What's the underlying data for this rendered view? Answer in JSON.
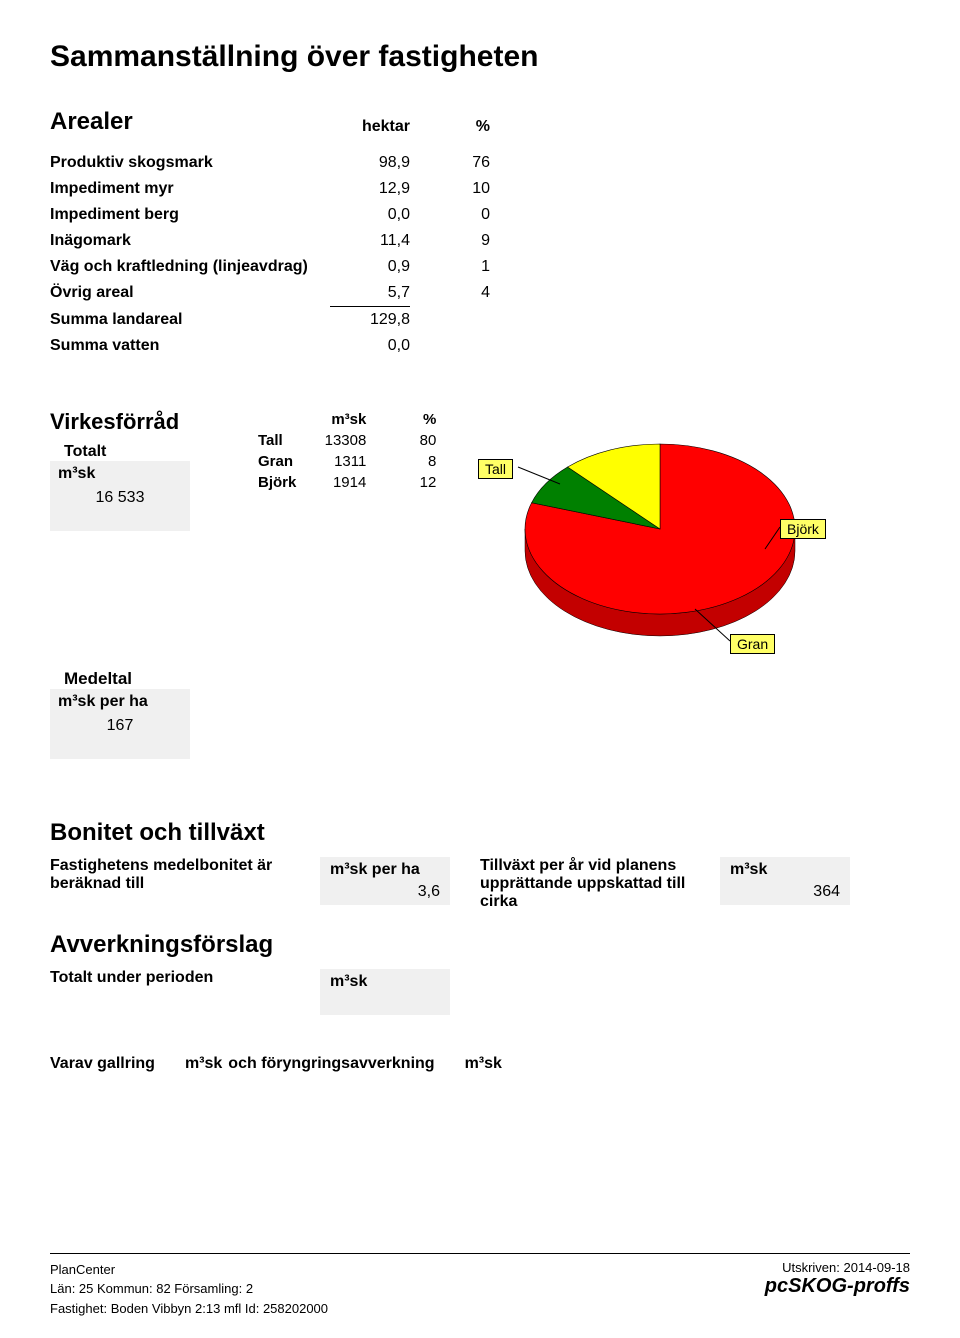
{
  "title": "Sammanställning över fastigheten",
  "arealer": {
    "heading": "Arealer",
    "col_hektar": "hektar",
    "col_pct": "%",
    "rows": [
      {
        "label": "Produktiv skogsmark",
        "v": "98,9",
        "p": "76"
      },
      {
        "label": "Impediment myr",
        "v": "12,9",
        "p": "10"
      },
      {
        "label": "Impediment berg",
        "v": "0,0",
        "p": "0"
      },
      {
        "label": "Inägomark",
        "v": "11,4",
        "p": "9"
      },
      {
        "label": "Väg och kraftledning (linjeavdrag)",
        "v": "0,9",
        "p": "1"
      },
      {
        "label": "Övrig areal",
        "v": "5,7",
        "p": "4"
      }
    ],
    "summa_land_label": "Summa landareal",
    "summa_land_v": "129,8",
    "summa_vatten_label": "Summa vatten",
    "summa_vatten_v": "0,0"
  },
  "virkes": {
    "heading": "Virkesförråd",
    "totalt_label": "Totalt",
    "m3sk_label": "m³sk",
    "totalt_val": "16 533",
    "col_m3sk": "m³sk",
    "col_pct": "%",
    "species": [
      {
        "name": "Tall",
        "m3sk": "13308",
        "pct": "80",
        "color": "#ff0000"
      },
      {
        "name": "Gran",
        "m3sk": "1311",
        "pct": "8",
        "color": "#008000"
      },
      {
        "name": "Björk",
        "m3sk": "1914",
        "pct": "12",
        "color": "#ffff00"
      }
    ]
  },
  "pie": {
    "slices": [
      {
        "pct": 80,
        "color": "#ff0000",
        "label": "Tall"
      },
      {
        "pct": 8,
        "color": "#008000",
        "label": "Gran"
      },
      {
        "pct": 12,
        "color": "#ffff00",
        "label": "Björk"
      }
    ],
    "side_color": "#800000",
    "stroke": "#000000"
  },
  "medeltal": {
    "heading": "Medeltal",
    "label": "m³sk per ha",
    "val": "167"
  },
  "bonitet": {
    "heading": "Bonitet och tillväxt",
    "medel_label": "Fastighetens medelbonitet är beräknad till",
    "m3sk_per_ha_label": "m³sk per ha",
    "m3sk_per_ha_val": "3,6",
    "tillvaxt_label": "Tillväxt per år vid planens upprättande uppskattad till cirka",
    "m3sk_label": "m³sk",
    "m3sk_val": "364"
  },
  "avverk": {
    "heading": "Avverkningsförslag",
    "totalt_label": "Totalt under perioden",
    "m3sk_label": "m³sk"
  },
  "gallring": {
    "varav_label": "Varav gallring",
    "m3sk_label": "m³sk",
    "foryngring_label": "och föryngringsavverkning",
    "m3sk_label2": "m³sk"
  },
  "footer": {
    "plancenter": "PlanCenter",
    "utskriven": "Utskriven: 2014-09-18",
    "lan_row": "Län: 25   Kommun: 82   Församling: 2",
    "fastighet_row": "Fastighet: Boden Vibbyn 2:13 mfl     Id: 258202000",
    "logo": "pcSKOG-proffs"
  }
}
